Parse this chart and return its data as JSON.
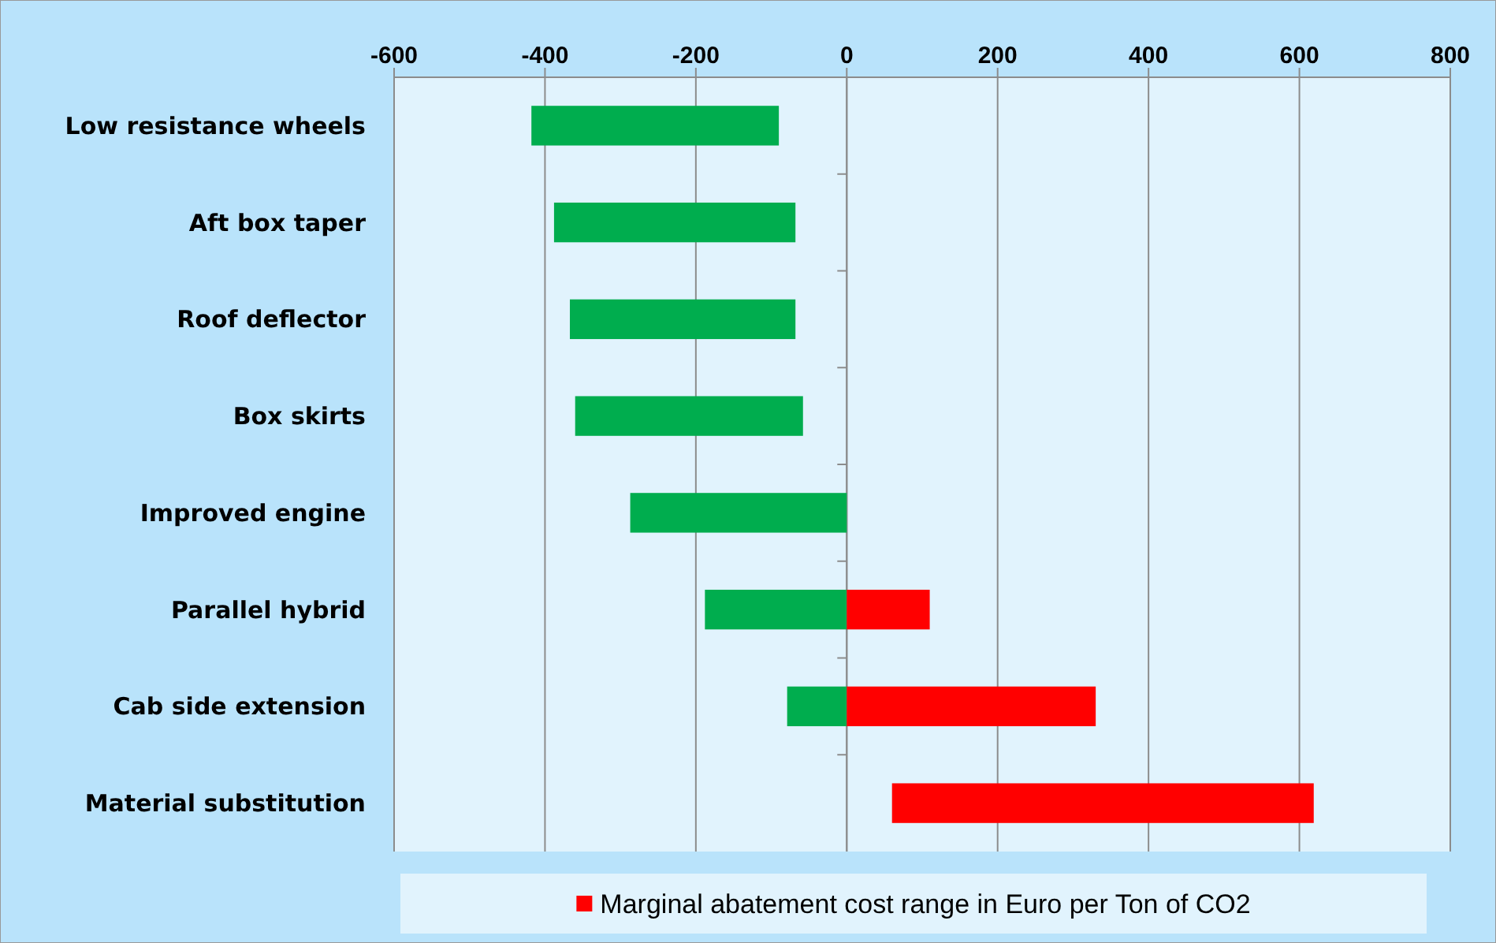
{
  "chart_data": {
    "type": "bar",
    "orientation": "horizontal",
    "categories": [
      "Low resistance wheels",
      "Aft box taper",
      "Roof deflector",
      "Box skirts",
      "Improved engine",
      "Parallel hybrid",
      "Cab side extension ",
      "Material substitution"
    ],
    "series": [
      {
        "color": "#00ad4e",
        "base": [
          -418,
          -388,
          -367,
          -360,
          -287,
          -188,
          -79,
          null
        ],
        "values": [
          328,
          320,
          299,
          302,
          287,
          188,
          79,
          null
        ]
      },
      {
        "name": "Marginal abatement cost range in Euro per Ton of CO2",
        "color": "#ff0000",
        "base": [
          null,
          null,
          null,
          null,
          null,
          0,
          0,
          60
        ],
        "values": [
          null,
          null,
          null,
          null,
          null,
          110,
          330,
          559
        ]
      }
    ],
    "xlim": [
      -600,
      800
    ],
    "xticks": [
      -600,
      -400,
      -200,
      0,
      200,
      400,
      600,
      800
    ],
    "grid": "x",
    "legend": "bottom"
  }
}
